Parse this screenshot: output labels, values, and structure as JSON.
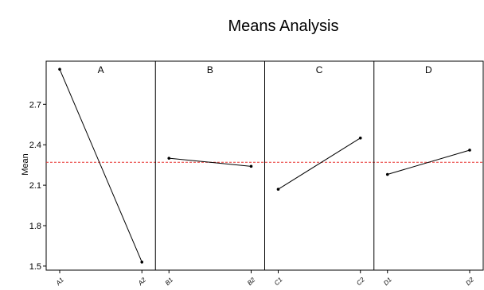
{
  "chart_data": {
    "type": "line",
    "title": "Means Analysis",
    "xlabel": "",
    "ylabel": "Mean",
    "ylim": [
      1.47,
      3.02
    ],
    "yticks": [
      1.5,
      1.8,
      2.1,
      2.4,
      2.7
    ],
    "reference_line": {
      "value": 2.27,
      "color": "#e8312f",
      "style": "dashed"
    },
    "grid": false,
    "panels": [
      {
        "name": "A",
        "categories": [
          "A1",
          "A2"
        ],
        "values": [
          2.96,
          1.53
        ]
      },
      {
        "name": "B",
        "categories": [
          "B1",
          "B2"
        ],
        "values": [
          2.3,
          2.24
        ]
      },
      {
        "name": "C",
        "categories": [
          "C1",
          "C2"
        ],
        "values": [
          2.07,
          2.45
        ]
      },
      {
        "name": "D",
        "categories": [
          "D1",
          "D2"
        ],
        "values": [
          2.18,
          2.36
        ]
      }
    ]
  }
}
